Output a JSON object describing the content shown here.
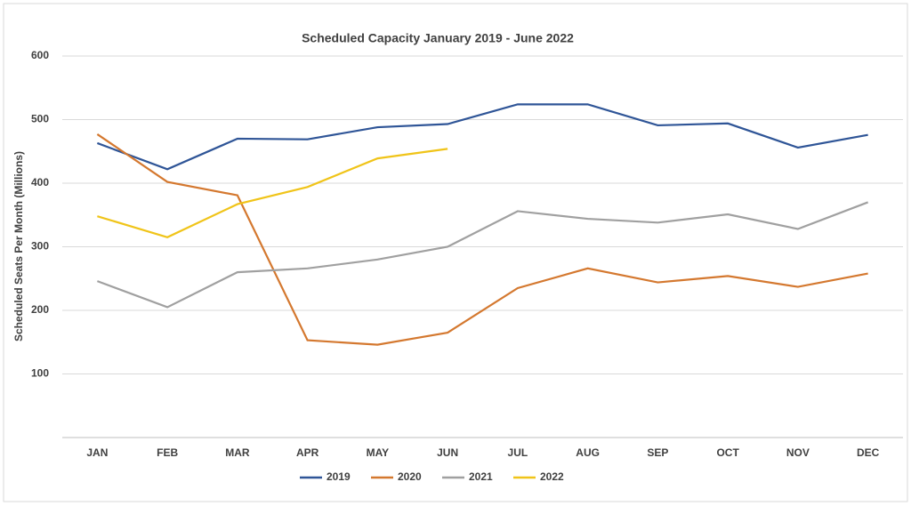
{
  "chart_data": {
    "type": "line",
    "title": "Scheduled Capacity January 2019   - June 2022",
    "y_label": "Scheduled Seats Per Month (Millions)",
    "categories": [
      "JAN",
      "FEB",
      "MAR",
      "APR",
      "MAY",
      "JUN",
      "JUL",
      "AUG",
      "SEP",
      "OCT",
      "NOV",
      "DEC"
    ],
    "series": [
      {
        "name": "2019",
        "color": "#2f5597",
        "values": [
          463,
          422,
          470,
          469,
          488,
          493,
          524,
          524,
          491,
          494,
          456,
          476
        ]
      },
      {
        "name": "2020",
        "color": "#d4782f",
        "values": [
          477,
          402,
          381,
          153,
          146,
          165,
          235,
          266,
          244,
          254,
          237,
          258
        ]
      },
      {
        "name": "2021",
        "color": "#a0a0a0",
        "values": [
          246,
          205,
          260,
          266,
          280,
          300,
          356,
          344,
          338,
          351,
          328,
          370
        ]
      },
      {
        "name": "2022",
        "color": "#f0c419",
        "values": [
          348,
          315,
          367,
          394,
          439,
          454,
          null,
          null,
          null,
          null,
          null,
          null
        ]
      }
    ],
    "ylim": [
      0,
      600
    ],
    "yticks": [
      100,
      200,
      300,
      400,
      500,
      600
    ],
    "grid": true,
    "legend": "bottom"
  }
}
